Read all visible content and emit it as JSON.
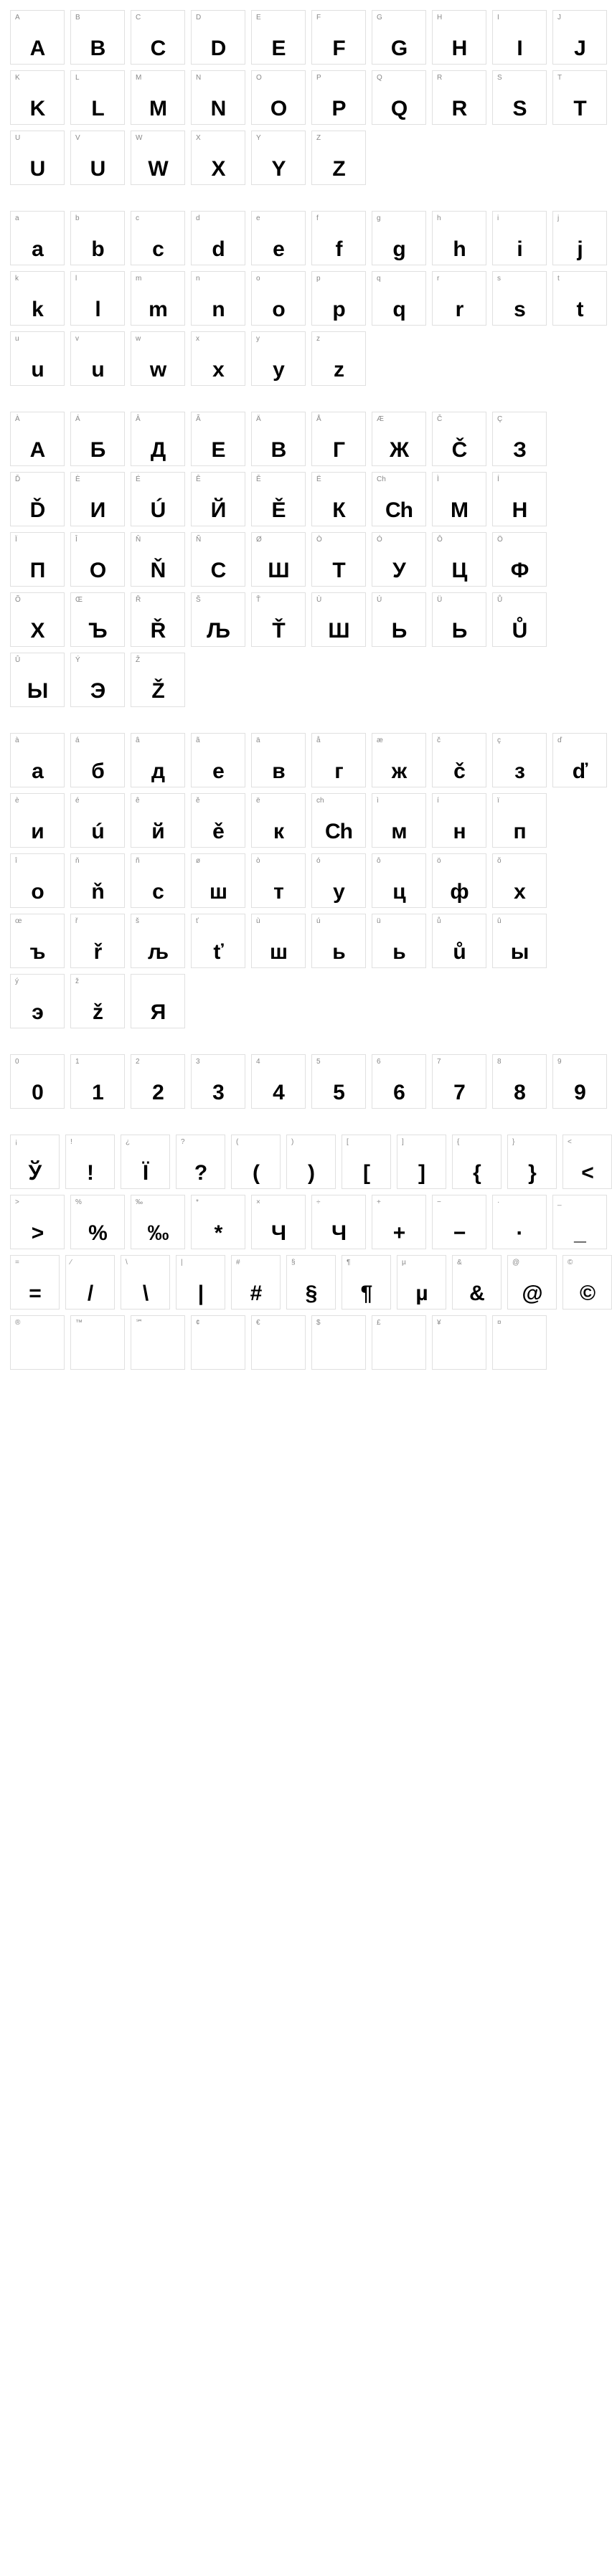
{
  "sections": [
    {
      "rows": [
        [
          {
            "l": "A",
            "g": "A"
          },
          {
            "l": "B",
            "g": "B"
          },
          {
            "l": "C",
            "g": "C"
          },
          {
            "l": "D",
            "g": "D"
          },
          {
            "l": "E",
            "g": "E"
          },
          {
            "l": "F",
            "g": "F"
          },
          {
            "l": "G",
            "g": "G"
          },
          {
            "l": "H",
            "g": "H"
          },
          {
            "l": "I",
            "g": "I"
          },
          {
            "l": "J",
            "g": "J"
          }
        ],
        [
          {
            "l": "K",
            "g": "K"
          },
          {
            "l": "L",
            "g": "L"
          },
          {
            "l": "M",
            "g": "M"
          },
          {
            "l": "N",
            "g": "N"
          },
          {
            "l": "O",
            "g": "O"
          },
          {
            "l": "P",
            "g": "P"
          },
          {
            "l": "Q",
            "g": "Q"
          },
          {
            "l": "R",
            "g": "R"
          },
          {
            "l": "S",
            "g": "S"
          },
          {
            "l": "T",
            "g": "T"
          }
        ],
        [
          {
            "l": "U",
            "g": "U"
          },
          {
            "l": "V",
            "g": "U"
          },
          {
            "l": "W",
            "g": "W"
          },
          {
            "l": "X",
            "g": "X"
          },
          {
            "l": "Y",
            "g": "Y"
          },
          {
            "l": "Z",
            "g": "Z"
          }
        ]
      ]
    },
    {
      "rows": [
        [
          {
            "l": "a",
            "g": "a"
          },
          {
            "l": "b",
            "g": "b"
          },
          {
            "l": "c",
            "g": "c"
          },
          {
            "l": "d",
            "g": "d"
          },
          {
            "l": "e",
            "g": "e"
          },
          {
            "l": "f",
            "g": "f"
          },
          {
            "l": "g",
            "g": "g"
          },
          {
            "l": "h",
            "g": "h"
          },
          {
            "l": "i",
            "g": "i"
          },
          {
            "l": "j",
            "g": "j"
          }
        ],
        [
          {
            "l": "k",
            "g": "k"
          },
          {
            "l": "l",
            "g": "l"
          },
          {
            "l": "m",
            "g": "m"
          },
          {
            "l": "n",
            "g": "n"
          },
          {
            "l": "o",
            "g": "o"
          },
          {
            "l": "p",
            "g": "p"
          },
          {
            "l": "q",
            "g": "q"
          },
          {
            "l": "r",
            "g": "r"
          },
          {
            "l": "s",
            "g": "s"
          },
          {
            "l": "t",
            "g": "t"
          }
        ],
        [
          {
            "l": "u",
            "g": "u"
          },
          {
            "l": "v",
            "g": "u"
          },
          {
            "l": "w",
            "g": "w"
          },
          {
            "l": "x",
            "g": "x"
          },
          {
            "l": "y",
            "g": "y"
          },
          {
            "l": "z",
            "g": "z"
          }
        ]
      ]
    },
    {
      "rows": [
        [
          {
            "l": "À",
            "g": "А"
          },
          {
            "l": "Á",
            "g": "Б"
          },
          {
            "l": "Â",
            "g": "Д"
          },
          {
            "l": "Ã",
            "g": "Е"
          },
          {
            "l": "Ä",
            "g": "В"
          },
          {
            "l": "Å",
            "g": "Г"
          },
          {
            "l": "Æ",
            "g": "Ж"
          },
          {
            "l": "Č",
            "g": "Č"
          },
          {
            "l": "Ç",
            "g": "З"
          }
        ],
        [
          {
            "l": "Ď",
            "g": "Ď"
          },
          {
            "l": "È",
            "g": "И"
          },
          {
            "l": "É",
            "g": "Ú"
          },
          {
            "l": "Ê",
            "g": "Й"
          },
          {
            "l": "Ě",
            "g": "Ě"
          },
          {
            "l": "Ë",
            "g": "К"
          },
          {
            "l": "Ch",
            "g": "Ch"
          },
          {
            "l": "Ì",
            "g": "М"
          },
          {
            "l": "Í",
            "g": "Н"
          }
        ],
        [
          {
            "l": "Ï",
            "g": "П"
          },
          {
            "l": "Î",
            "g": "О"
          },
          {
            "l": "Ň",
            "g": "Ň"
          },
          {
            "l": "Ñ",
            "g": "С"
          },
          {
            "l": "Ø",
            "g": "Ш"
          },
          {
            "l": "Ò",
            "g": "Т"
          },
          {
            "l": "Ó",
            "g": "У"
          },
          {
            "l": "Ô",
            "g": "Ц"
          },
          {
            "l": "Ö",
            "g": "Ф"
          }
        ],
        [
          {
            "l": "Õ",
            "g": "Х"
          },
          {
            "l": "Œ",
            "g": "Ъ"
          },
          {
            "l": "Ř",
            "g": "Ř"
          },
          {
            "l": "Š",
            "g": "Љ"
          },
          {
            "l": "Ť",
            "g": "Ť"
          },
          {
            "l": "Ù",
            "g": "Ш"
          },
          {
            "l": "Ú",
            "g": "Ь"
          },
          {
            "l": "Ü",
            "g": "Ь"
          },
          {
            "l": "Ů",
            "g": "Ů"
          }
        ],
        [
          {
            "l": "Û",
            "g": "Ы"
          },
          {
            "l": "Ý",
            "g": "Э"
          },
          {
            "l": "Ž",
            "g": "Ž"
          }
        ]
      ]
    },
    {
      "rows": [
        [
          {
            "l": "à",
            "g": "а"
          },
          {
            "l": "á",
            "g": "б"
          },
          {
            "l": "â",
            "g": "д"
          },
          {
            "l": "ã",
            "g": "е"
          },
          {
            "l": "ä",
            "g": "в"
          },
          {
            "l": "å",
            "g": "г"
          },
          {
            "l": "æ",
            "g": "ж"
          },
          {
            "l": "č",
            "g": "č"
          },
          {
            "l": "ç",
            "g": "з"
          },
          {
            "l": "ď",
            "g": "ď"
          }
        ],
        [
          {
            "l": "è",
            "g": "и"
          },
          {
            "l": "é",
            "g": "ú"
          },
          {
            "l": "ê",
            "g": "й"
          },
          {
            "l": "ě",
            "g": "ě"
          },
          {
            "l": "ë",
            "g": "к"
          },
          {
            "l": "ch",
            "g": "Ch"
          },
          {
            "l": "ì",
            "g": "м"
          },
          {
            "l": "í",
            "g": "н"
          },
          {
            "l": "ï",
            "g": "п"
          }
        ],
        [
          {
            "l": "î",
            "g": "о"
          },
          {
            "l": "ň",
            "g": "ň"
          },
          {
            "l": "ñ",
            "g": "с"
          },
          {
            "l": "ø",
            "g": "ш"
          },
          {
            "l": "ò",
            "g": "т"
          },
          {
            "l": "ó",
            "g": "у"
          },
          {
            "l": "ô",
            "g": "ц"
          },
          {
            "l": "ö",
            "g": "ф"
          },
          {
            "l": "õ",
            "g": "х"
          }
        ],
        [
          {
            "l": "œ",
            "g": "ъ"
          },
          {
            "l": "ř",
            "g": "ř"
          },
          {
            "l": "š",
            "g": "љ"
          },
          {
            "l": "ť",
            "g": "ť"
          },
          {
            "l": "ù",
            "g": "ш"
          },
          {
            "l": "ú",
            "g": "ь"
          },
          {
            "l": "ü",
            "g": "ь"
          },
          {
            "l": "ů",
            "g": "ů"
          },
          {
            "l": "û",
            "g": "ы"
          }
        ],
        [
          {
            "l": "ý",
            "g": "э"
          },
          {
            "l": "ž",
            "g": "ž"
          },
          {
            "l": "",
            "g": "Я"
          }
        ]
      ]
    },
    {
      "rows": [
        [
          {
            "l": "0",
            "g": "0"
          },
          {
            "l": "1",
            "g": "1"
          },
          {
            "l": "2",
            "g": "2"
          },
          {
            "l": "3",
            "g": "3"
          },
          {
            "l": "4",
            "g": "4"
          },
          {
            "l": "5",
            "g": "5"
          },
          {
            "l": "6",
            "g": "6"
          },
          {
            "l": "7",
            "g": "7"
          },
          {
            "l": "8",
            "g": "8"
          },
          {
            "l": "9",
            "g": "9"
          }
        ]
      ]
    },
    {
      "rows": [
        [
          {
            "l": "¡",
            "g": "Ў"
          },
          {
            "l": "!",
            "g": "!"
          },
          {
            "l": "¿",
            "g": "Ї"
          },
          {
            "l": "?",
            "g": "?"
          },
          {
            "l": "(",
            "g": "("
          },
          {
            "l": ")",
            "g": ")"
          },
          {
            "l": "[",
            "g": "["
          },
          {
            "l": "]",
            "g": "]"
          },
          {
            "l": "{",
            "g": "{"
          },
          {
            "l": "}",
            "g": "}"
          },
          {
            "l": "<",
            "g": "<"
          }
        ],
        [
          {
            "l": ">",
            "g": ">"
          },
          {
            "l": "%",
            "g": "%"
          },
          {
            "l": "‰",
            "g": "‰"
          },
          {
            "l": "*",
            "g": "*"
          },
          {
            "l": "×",
            "g": "Ч"
          },
          {
            "l": "÷",
            "g": "Ч"
          },
          {
            "l": "+",
            "g": "+"
          },
          {
            "l": "−",
            "g": "−"
          },
          {
            "l": "·",
            "g": "·"
          },
          {
            "l": "_",
            "g": "_"
          }
        ],
        [
          {
            "l": "=",
            "g": "="
          },
          {
            "l": "⁄",
            "g": "/"
          },
          {
            "l": "\\",
            "g": "\\"
          },
          {
            "l": "|",
            "g": "|"
          },
          {
            "l": "#",
            "g": "#"
          },
          {
            "l": "§",
            "g": "§"
          },
          {
            "l": "¶",
            "g": "¶"
          },
          {
            "l": "µ",
            "g": "µ"
          },
          {
            "l": "&",
            "g": "&"
          },
          {
            "l": "@",
            "g": "@"
          },
          {
            "l": "©",
            "g": "©"
          }
        ],
        [
          {
            "l": "®",
            "g": ""
          },
          {
            "l": "™",
            "g": ""
          },
          {
            "l": "℠",
            "g": ""
          },
          {
            "l": "¢",
            "g": ""
          },
          {
            "l": "€",
            "g": ""
          },
          {
            "l": "$",
            "g": ""
          },
          {
            "l": "£",
            "g": ""
          },
          {
            "l": "¥",
            "g": ""
          },
          {
            "l": "¤",
            "g": ""
          }
        ]
      ]
    }
  ]
}
